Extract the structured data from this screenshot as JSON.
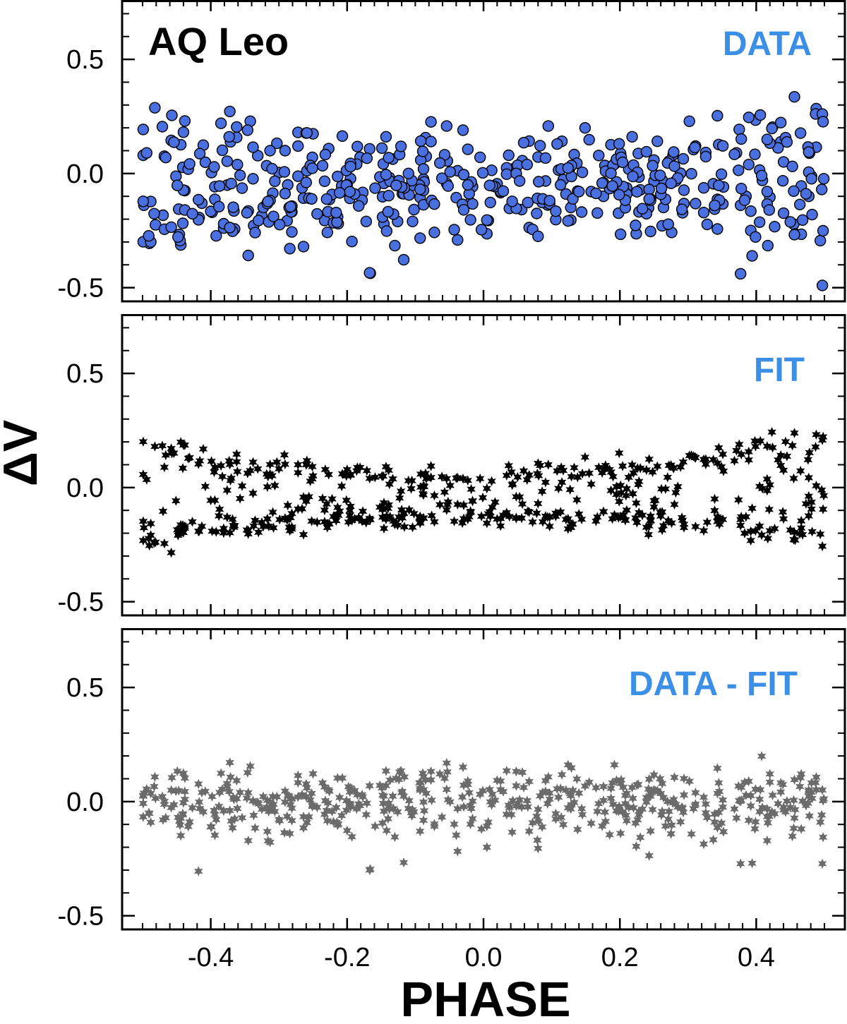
{
  "figure": {
    "star_label": "AQ Leo",
    "ylabel": "ΔV",
    "xlabel": "PHASE"
  },
  "chart_data": [
    {
      "type": "scatter",
      "panel": "top",
      "label": "DATA",
      "label_color": "#3b8fe6",
      "marker": "circle",
      "marker_fill": "#4a6fde",
      "marker_stroke": "#000000",
      "xlim": [
        -0.53,
        0.53
      ],
      "ylim": [
        -0.56,
        0.76
      ],
      "x_ticks": [
        -0.4,
        -0.2,
        0.0,
        0.2,
        0.4
      ],
      "y_ticks": [
        0.5,
        0.0,
        -0.5
      ],
      "y_tick_labels": [
        "0.5",
        "0.0",
        "-0.5"
      ],
      "x_tick_labels": [
        "",
        "",
        "",
        "",
        ""
      ],
      "point_count": 500,
      "points": []
    },
    {
      "type": "scatter",
      "panel": "middle",
      "label": "FIT",
      "label_color": "#3b8fe6",
      "marker": "star",
      "marker_fill": "#000000",
      "xlim": [
        -0.53,
        0.53
      ],
      "ylim": [
        -0.56,
        0.76
      ],
      "x_ticks": [
        -0.4,
        -0.2,
        0.0,
        0.2,
        0.4
      ],
      "y_ticks": [
        0.5,
        0.0,
        -0.5
      ],
      "y_tick_labels": [
        "0.5",
        "0.0",
        "-0.5"
      ],
      "x_tick_labels": [
        "",
        "",
        "",
        "",
        ""
      ],
      "point_count": 500,
      "points": []
    },
    {
      "type": "scatter",
      "panel": "bottom",
      "label": "DATA - FIT",
      "label_color": "#3b8fe6",
      "marker": "star",
      "marker_fill": "#6b6b6b",
      "xlim": [
        -0.53,
        0.53
      ],
      "ylim": [
        -0.56,
        0.76
      ],
      "x_ticks": [
        -0.4,
        -0.2,
        0.0,
        0.2,
        0.4
      ],
      "y_ticks": [
        0.5,
        0.0,
        -0.5
      ],
      "y_tick_labels": [
        "0.5",
        "0.0",
        "-0.5"
      ],
      "x_tick_labels": [
        "-0.4",
        "-0.2",
        "0.0",
        "0.2",
        "0.4"
      ],
      "point_count": 500,
      "points": []
    }
  ]
}
